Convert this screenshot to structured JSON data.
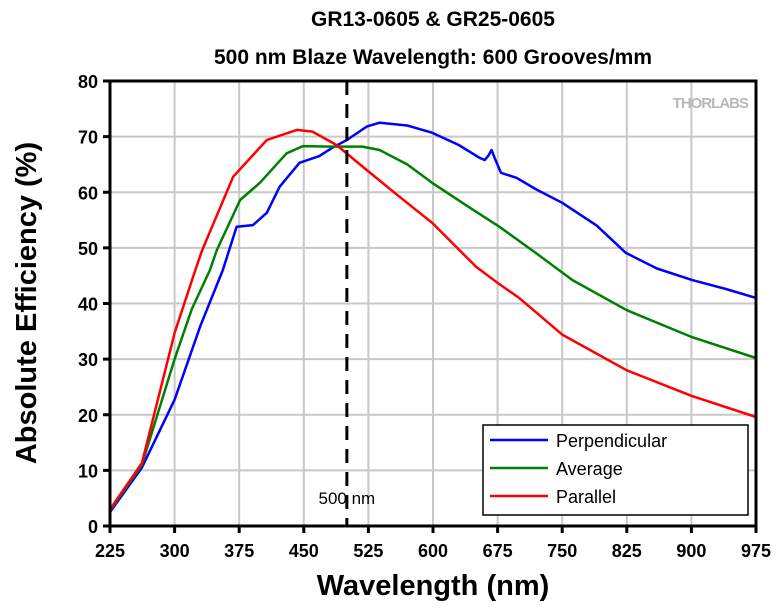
{
  "chart_data": {
    "type": "line",
    "title": "GR13-0605 & GR25-0605",
    "subtitle": "500 nm Blaze Wavelength: 600 Grooves/mm",
    "xlabel": "Wavelength (nm)",
    "ylabel": "Absolute Efficiency (%)",
    "xlim": [
      225,
      975
    ],
    "ylim": [
      0,
      80
    ],
    "xticks": [
      "225",
      "300",
      "375",
      "450",
      "525",
      "600",
      "675",
      "750",
      "825",
      "900",
      "975"
    ],
    "yticks": [
      "0",
      "10",
      "20",
      "30",
      "40",
      "50",
      "60",
      "70",
      "80"
    ],
    "grid": true,
    "legend_position": "bottom-right",
    "watermark": "THORLABS",
    "annotation": {
      "label": "500 nm",
      "x": 500
    },
    "series": [
      {
        "name": "Perpendicular",
        "color": "#0000ff",
        "points": [
          [
            225,
            2.5
          ],
          [
            262,
            10.5
          ],
          [
            300,
            22.7
          ],
          [
            330,
            36
          ],
          [
            356,
            46
          ],
          [
            372,
            53.8
          ],
          [
            391,
            54.1
          ],
          [
            407,
            56.3
          ],
          [
            422,
            61
          ],
          [
            445,
            65.3
          ],
          [
            468,
            66.5
          ],
          [
            483,
            68
          ],
          [
            500,
            69.4
          ],
          [
            523,
            71.8
          ],
          [
            538,
            72.5
          ],
          [
            570,
            72
          ],
          [
            599,
            70.7
          ],
          [
            630,
            68.5
          ],
          [
            654,
            66.2
          ],
          [
            660,
            65.8
          ],
          [
            664,
            66.5
          ],
          [
            668,
            67.6
          ],
          [
            672,
            66
          ],
          [
            679,
            63.5
          ],
          [
            697,
            62.6
          ],
          [
            720,
            60.5
          ],
          [
            750,
            58.1
          ],
          [
            790,
            54
          ],
          [
            824,
            49.1
          ],
          [
            860,
            46.3
          ],
          [
            901,
            44.2
          ],
          [
            940,
            42.6
          ],
          [
            975,
            41
          ]
        ]
      },
      {
        "name": "Average",
        "color": "#008000",
        "points": [
          [
            225,
            2.8
          ],
          [
            262,
            11
          ],
          [
            300,
            30
          ],
          [
            320,
            39
          ],
          [
            341,
            46
          ],
          [
            349,
            49.6
          ],
          [
            376,
            58.6
          ],
          [
            399,
            61.7
          ],
          [
            430,
            67
          ],
          [
            449,
            68.3
          ],
          [
            483,
            68.2
          ],
          [
            518,
            68.2
          ],
          [
            538,
            67.6
          ],
          [
            570,
            65
          ],
          [
            599,
            61.7
          ],
          [
            640,
            57.5
          ],
          [
            677,
            53.8
          ],
          [
            720,
            49
          ],
          [
            762,
            44.2
          ],
          [
            825,
            38.8
          ],
          [
            900,
            34
          ],
          [
            975,
            30.2
          ]
        ]
      },
      {
        "name": "Parallel",
        "color": "#ff0000",
        "points": [
          [
            225,
            3
          ],
          [
            262,
            11.3
          ],
          [
            300,
            34.7
          ],
          [
            324,
            46
          ],
          [
            332,
            49.6
          ],
          [
            368,
            62.8
          ],
          [
            407,
            69.4
          ],
          [
            442,
            71.2
          ],
          [
            460,
            70.9
          ],
          [
            488,
            68.5
          ],
          [
            523,
            64
          ],
          [
            561,
            59.2
          ],
          [
            599,
            54.5
          ],
          [
            650,
            46.6
          ],
          [
            675,
            43.7
          ],
          [
            700,
            41
          ],
          [
            750,
            34.4
          ],
          [
            825,
            28
          ],
          [
            900,
            23.4
          ],
          [
            975,
            19.6
          ]
        ]
      }
    ]
  }
}
